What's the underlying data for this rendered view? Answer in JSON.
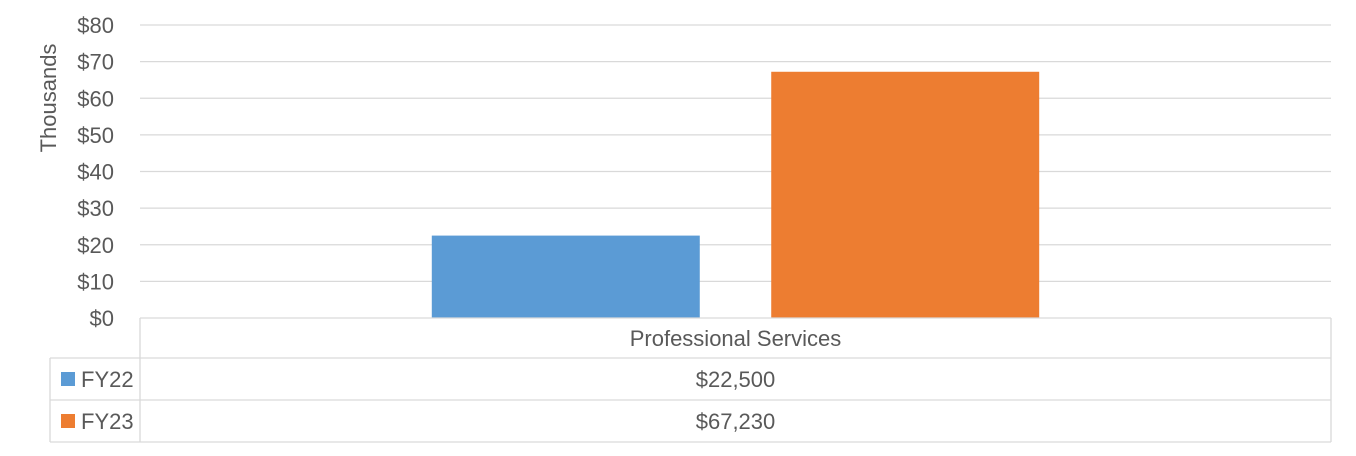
{
  "chart_data": {
    "type": "bar",
    "categories": [
      "Professional Services"
    ],
    "series": [
      {
        "name": "FY22",
        "values": [
          22500
        ],
        "label": "$22,500",
        "color": "#5B9BD5"
      },
      {
        "name": "FY23",
        "values": [
          67230
        ],
        "label": "$67,230",
        "color": "#ED7D31"
      }
    ],
    "ylabel": "Thousands",
    "ylim": [
      0,
      80000
    ],
    "y_ticks": [
      {
        "value": 0,
        "label": "$0"
      },
      {
        "value": 10000,
        "label": "$10"
      },
      {
        "value": 20000,
        "label": "$20"
      },
      {
        "value": 30000,
        "label": "$30"
      },
      {
        "value": 40000,
        "label": "$40"
      },
      {
        "value": 50000,
        "label": "$50"
      },
      {
        "value": 60000,
        "label": "$60"
      },
      {
        "value": 70000,
        "label": "$70"
      },
      {
        "value": 80000,
        "label": "$80"
      }
    ],
    "grid": true,
    "legend": "data-table",
    "gridline_color": "#D9D9D9",
    "text_color": "#595959"
  }
}
